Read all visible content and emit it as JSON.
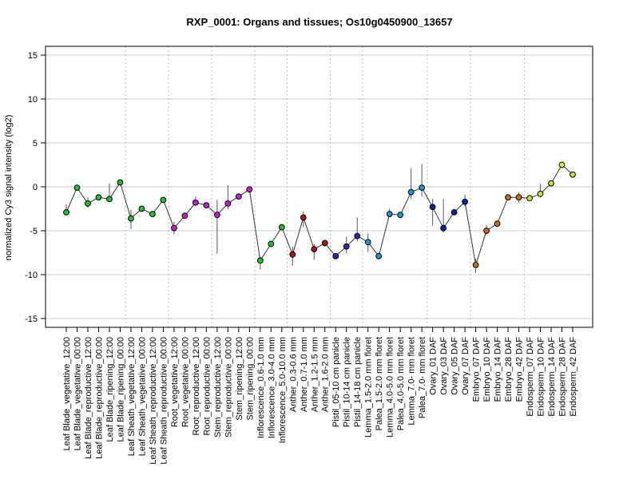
{
  "chart_data": {
    "type": "line",
    "title": "RXP_0001: Organs and tissues; Os10g0450900_13657",
    "xlabel": "",
    "ylabel": "normalized Cy3 signal intensity (log2)",
    "ylim": [
      -16,
      16
    ],
    "yticks": [
      -15,
      -10,
      -5,
      0,
      5,
      10,
      15
    ],
    "grid": "horizontal",
    "categories": [
      "Leaf Blade_vegetative_12:00",
      "Leaf Blade_vegetative_00:00",
      "Leaf Blade_reproductive_12:00",
      "Leaf Blade_reproductive_00:00",
      "Leaf Blade_ripening_12:00",
      "Leaf Blade_ripening_00:00",
      "Leaf Sheath_vegetative_12:00",
      "Leaf Sheath_vegetative_00:00",
      "Leaf Sheath_reproductive_12:00",
      "Leaf Sheath_reproductive_00:00",
      "Root_vegetative_12:00",
      "Root_vegetative_00:00",
      "Root_reproductive_12:00",
      "Root_reproductive_00:00",
      "Stem_reproductive_12:00",
      "Stem_reproductive_00:00",
      "Stem_ripening_12:00",
      "Stem_ripening_00:00",
      "Inflorescence_0.6-1.0 mm",
      "Inflorescence_3.0-4.0 mm",
      "Inflorescence_5.0-10.0 mm",
      "Anther_0.3-0.6 mm",
      "Anther_0.7-1.0 mm",
      "Anther_1.2-1.5 mm",
      "Anther_1.6-2.0 mm",
      "Pistil_05-10 cm panicle",
      "Pistil_10-14 cm panicle",
      "Pistil_14-18 cm panicle",
      "Lemma_1.5-2.0 mm floret",
      "Palea_1.5-2.0 mm floret",
      "Lemma_4.0-5.0 mm floret",
      "Palea_4.0-5.0 mm floret",
      "Lemma_7.0- mm floret",
      "Palea_7.0- mm floret",
      "Ovary_01 DAF",
      "Ovary_03 DAF",
      "Ovary_05 DAF",
      "Ovary_07 DAF",
      "Embryo_07 DAF",
      "Embryo_10 DAF",
      "Embryo_14 DAF",
      "Embryo_28 DAF",
      "Embryo_42 DAF",
      "Endosperm_07 DAF",
      "Endosperm_10 DAF",
      "Endosperm_14 DAF",
      "Endosperm_28 DAF",
      "Endosperm_42 DAF"
    ],
    "values": [
      -2.9,
      -0.1,
      -1.9,
      -1.2,
      -1.4,
      0.5,
      -3.6,
      -2.5,
      -3.1,
      -1.5,
      -4.7,
      -3.3,
      -1.8,
      -2.1,
      -3.2,
      -1.9,
      -1.1,
      -0.3,
      -8.4,
      -6.5,
      -4.6,
      -7.7,
      -3.5,
      -7.1,
      -6.4,
      -7.9,
      -6.8,
      -5.6,
      -6.3,
      -7.9,
      -3.1,
      -3.2,
      -0.6,
      -0.1,
      -2.3,
      -4.7,
      -2.9,
      -1.7,
      -8.9,
      -5.0,
      -4.2,
      -1.2,
      -1.2,
      -1.3,
      -0.8,
      0.4,
      2.5,
      1.4
    ],
    "error_low": [
      -3.2,
      -0.3,
      -2.4,
      -1.5,
      -1.6,
      0.3,
      -4.8,
      -2.8,
      -3.3,
      -1.8,
      -5.4,
      -3.6,
      -2.0,
      -2.3,
      -7.6,
      -2.5,
      -1.4,
      -0.6,
      -9.4,
      -6.7,
      -4.9,
      -9.0,
      -4.6,
      -8.3,
      -6.8,
      -8.2,
      -7.6,
      -6.2,
      -7.4,
      -8.1,
      -3.3,
      -3.5,
      -1.4,
      -1.1,
      -4.4,
      -5.2,
      -3.1,
      -2.2,
      -9.8,
      -5.4,
      -4.5,
      -1.5,
      -1.8,
      -1.5,
      -1.2,
      0.1,
      2.2,
      1.2
    ],
    "error_high": [
      -2.0,
      0.2,
      -1.2,
      -0.9,
      0.4,
      0.7,
      -2.6,
      -2.2,
      -2.9,
      -1.2,
      -4.0,
      -3.0,
      -1.1,
      -1.8,
      -1.5,
      0.2,
      -0.8,
      -0.1,
      -8.0,
      -6.2,
      -4.3,
      -6.8,
      -2.8,
      -6.5,
      -6.1,
      -7.6,
      -5.7,
      -3.5,
      -5.3,
      -7.5,
      -2.5,
      -2.9,
      2.1,
      2.6,
      -1.4,
      -1.4,
      -2.6,
      -0.9,
      -8.2,
      -4.4,
      -3.9,
      -0.9,
      -0.6,
      -1.0,
      0.3,
      0.7,
      2.8,
      1.7
    ],
    "colors": [
      "#22c032",
      "#22c032",
      "#22c032",
      "#22c032",
      "#22c032",
      "#22c032",
      "#22c032",
      "#22c032",
      "#22c032",
      "#22c032",
      "#c020d0",
      "#c020d0",
      "#c020d0",
      "#c020d0",
      "#c020d0",
      "#c020d0",
      "#c020d0",
      "#c020d0",
      "#22c032",
      "#22c032",
      "#22c032",
      "#b01010",
      "#b01010",
      "#b01010",
      "#b01010",
      "#2a2aaa",
      "#2a2aaa",
      "#2a2aaa",
      "#1a9ad0",
      "#1a9ad0",
      "#1a9ad0",
      "#1a9ad0",
      "#1a9ad0",
      "#1a9ad0",
      "#1020a0",
      "#1020a0",
      "#1020a0",
      "#1020a0",
      "#d06a10",
      "#d06a10",
      "#d06a10",
      "#d06a10",
      "#d06a10",
      "#c8e030",
      "#c8e030",
      "#c8e030",
      "#e8ec30",
      "#c8e030"
    ],
    "group_separators_after_index": [
      5,
      9,
      13,
      17,
      20,
      24,
      27,
      33,
      37,
      42
    ]
  }
}
